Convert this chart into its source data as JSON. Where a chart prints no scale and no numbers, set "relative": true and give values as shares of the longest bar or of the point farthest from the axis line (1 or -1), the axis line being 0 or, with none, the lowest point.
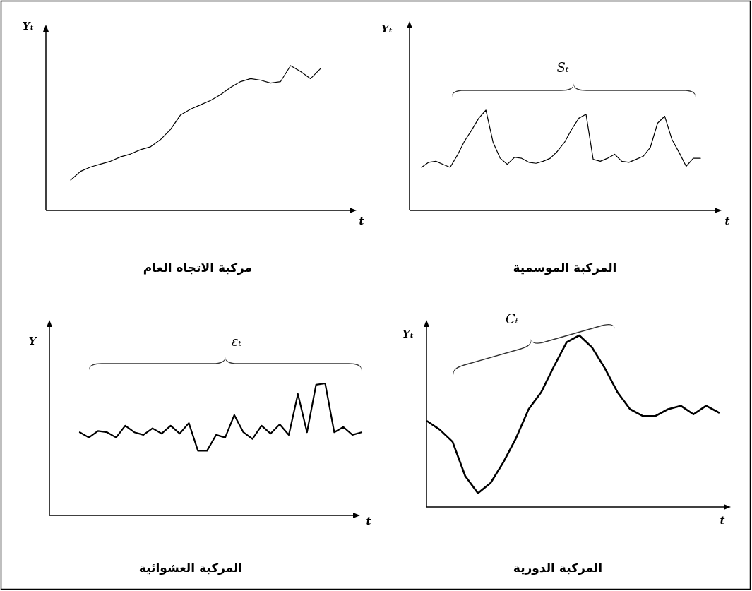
{
  "chart_data": [
    {
      "type": "line",
      "title": "مركبة الاتجاه العام",
      "xlabel": "t",
      "ylabel": "Yₜ",
      "relative": true,
      "categories": [
        null,
        null,
        null,
        null,
        null,
        null,
        null,
        null,
        null,
        null,
        null,
        null,
        null,
        null,
        null,
        null,
        null,
        null,
        null,
        null,
        null,
        null,
        null,
        null,
        null,
        null
      ],
      "series": [
        {
          "color": "#000000",
          "values": [
            0.21,
            0.27,
            0.3,
            0.32,
            0.34,
            0.37,
            0.39,
            0.42,
            0.44,
            0.49,
            0.56,
            0.66,
            0.7,
            0.73,
            0.76,
            0.8,
            0.85,
            0.89,
            0.91,
            0.9,
            0.88,
            0.89,
            1.0,
            0.96,
            0.91,
            0.98
          ]
        }
      ]
    },
    {
      "type": "line",
      "title": "المركبة الموسمية",
      "xlabel": "t",
      "ylabel": "Yₜ",
      "annotations": [
        "Sₜ"
      ],
      "relative": true,
      "categories": [
        null,
        null,
        null,
        null,
        null,
        null,
        null,
        null,
        null,
        null,
        null,
        null,
        null,
        null,
        null,
        null,
        null,
        null,
        null,
        null,
        null,
        null,
        null,
        null,
        null,
        null,
        null,
        null,
        null,
        null,
        null,
        null,
        null,
        null,
        null,
        null,
        null,
        null,
        null,
        null
      ],
      "series": [
        {
          "color": "#000000",
          "values": [
            0.43,
            0.48,
            0.49,
            0.46,
            0.43,
            0.55,
            0.69,
            0.8,
            0.92,
            1.0,
            0.68,
            0.52,
            0.46,
            0.53,
            0.52,
            0.48,
            0.47,
            0.49,
            0.52,
            0.59,
            0.68,
            0.81,
            0.92,
            0.96,
            0.51,
            0.49,
            0.52,
            0.56,
            0.49,
            0.48,
            0.51,
            0.54,
            0.63,
            0.87,
            0.94,
            0.71,
            0.58,
            0.44,
            0.52,
            0.52
          ]
        }
      ]
    },
    {
      "type": "line",
      "title": "المركبة العشوائية",
      "xlabel": "t",
      "ylabel": "Y",
      "annotations": [
        "εₜ"
      ],
      "relative": true,
      "categories": [
        null,
        null,
        null,
        null,
        null,
        null,
        null,
        null,
        null,
        null,
        null,
        null,
        null,
        null,
        null,
        null,
        null,
        null,
        null,
        null,
        null,
        null,
        null,
        null,
        null,
        null,
        null,
        null,
        null,
        null,
        null,
        null
      ],
      "series": [
        {
          "color": "#000000",
          "values": [
            0.63,
            0.59,
            0.64,
            0.63,
            0.59,
            0.68,
            0.63,
            0.61,
            0.66,
            0.62,
            0.68,
            0.62,
            0.7,
            0.49,
            0.49,
            0.61,
            0.59,
            0.76,
            0.63,
            0.58,
            0.68,
            0.62,
            0.69,
            0.61,
            0.92,
            0.63,
            0.99,
            1.0,
            0.63,
            0.67,
            0.61,
            0.63
          ]
        }
      ]
    },
    {
      "type": "line",
      "title": "المركبة الدورية",
      "xlabel": "t",
      "ylabel": "Yₜ",
      "annotations": [
        "Cₜ"
      ],
      "relative": true,
      "categories": [
        null,
        null,
        null,
        null,
        null,
        null,
        null,
        null,
        null,
        null,
        null,
        null,
        null,
        null,
        null,
        null,
        null,
        null,
        null,
        null,
        null,
        null,
        null,
        null
      ],
      "series": [
        {
          "color": "#000000",
          "values": [
            0.5,
            0.45,
            0.38,
            0.18,
            0.08,
            0.14,
            0.26,
            0.4,
            0.57,
            0.67,
            0.82,
            0.96,
            1.0,
            0.93,
            0.81,
            0.67,
            0.57,
            0.53,
            0.53,
            0.57,
            0.59,
            0.54,
            0.59,
            0.55
          ]
        }
      ]
    }
  ]
}
